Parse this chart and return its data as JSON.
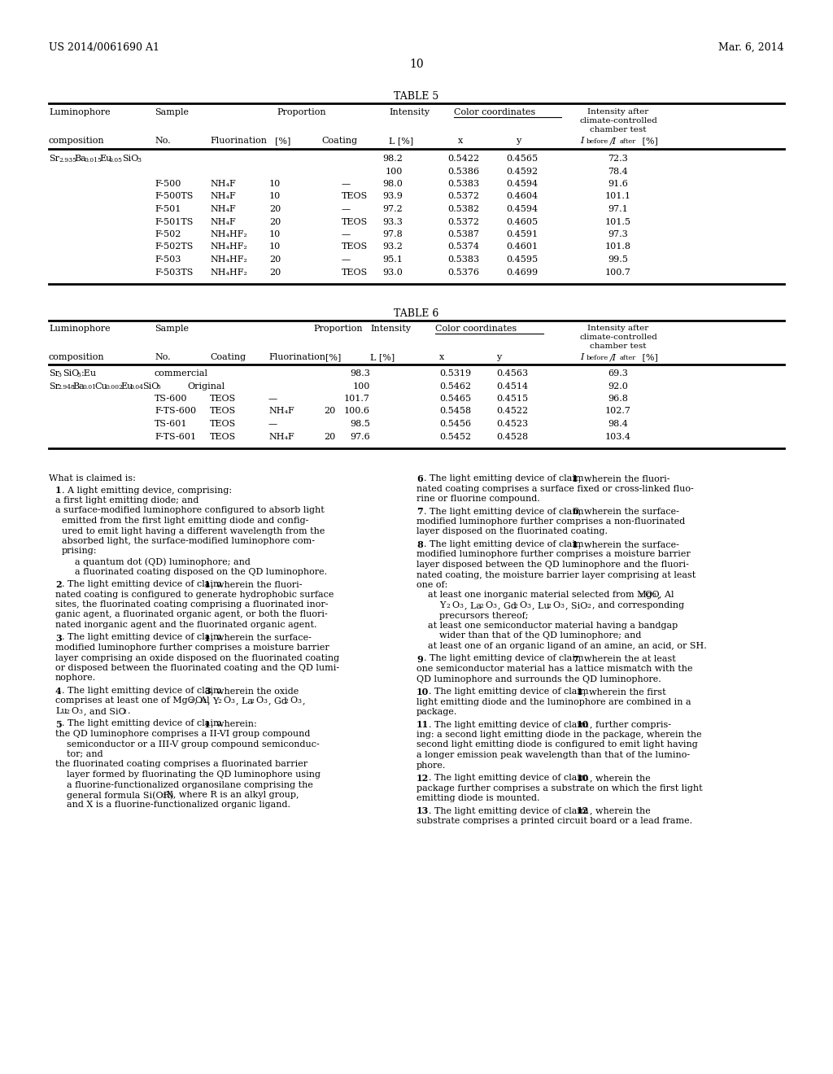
{
  "page_number": "10",
  "patent_number": "US 2014/0061690 A1",
  "patent_date": "Mar. 6, 2014",
  "background_color": "#ffffff"
}
